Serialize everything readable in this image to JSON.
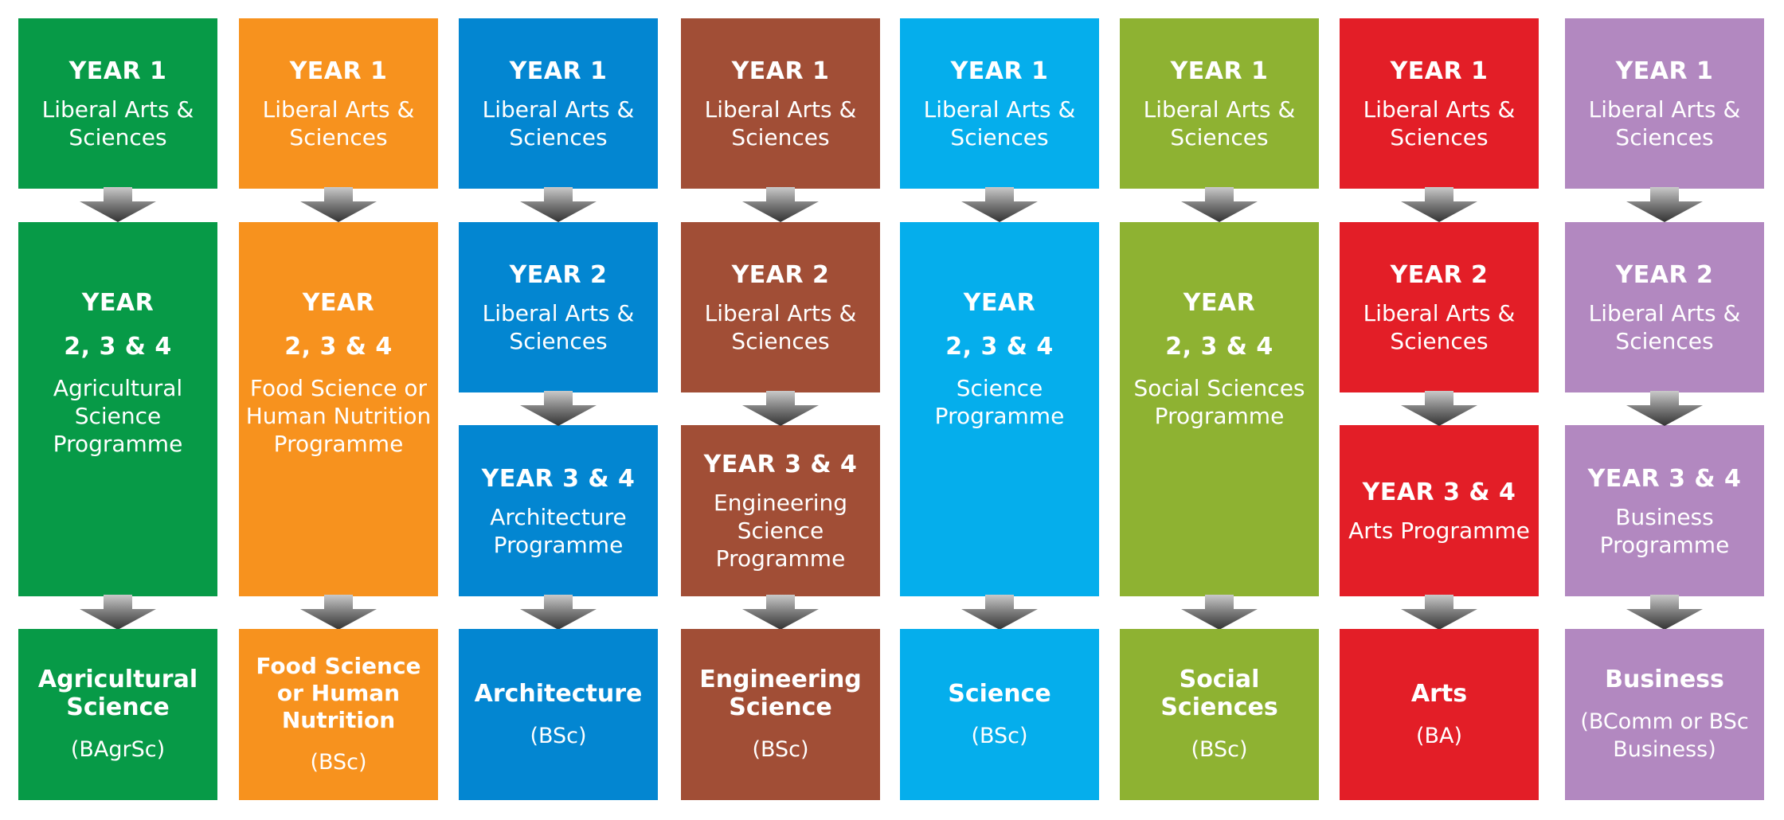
{
  "programmes": [
    {
      "color": "#079a47",
      "stages": [
        {
          "heading": "YEAR 1",
          "text": "Liberal Arts & Sciences"
        },
        {
          "heading": "YEAR",
          "subheading": "2, 3 & 4",
          "text": "Agricultural Science Programme"
        }
      ],
      "degree": {
        "title": "Agricultural Science",
        "abbr": "(BAgrSc)"
      }
    },
    {
      "color": "#f7921e",
      "stages": [
        {
          "heading": "YEAR 1",
          "text": "Liberal Arts & Sciences"
        },
        {
          "heading": "YEAR",
          "subheading": "2, 3 & 4",
          "text": "Food Science or Human Nutrition Programme"
        }
      ],
      "degree": {
        "title": "Food Science or Human Nutrition",
        "abbr": "(BSc)"
      }
    },
    {
      "color": "#0386d1",
      "stages": [
        {
          "heading": "YEAR 1",
          "text": "Liberal Arts & Sciences"
        },
        {
          "heading": "YEAR 2",
          "text": "Liberal Arts & Sciences"
        },
        {
          "heading": "YEAR 3 & 4",
          "text": "Architecture Programme"
        }
      ],
      "degree": {
        "title": "Architecture",
        "abbr": "(BSc)"
      }
    },
    {
      "color": "#a14e36",
      "stages": [
        {
          "heading": "YEAR 1",
          "text": "Liberal Arts & Sciences"
        },
        {
          "heading": "YEAR 2",
          "text": "Liberal Arts & Sciences"
        },
        {
          "heading": "YEAR 3 & 4",
          "text": "Engineering Science Programme"
        }
      ],
      "degree": {
        "title": "Engineering Science",
        "abbr": "(BSc)"
      }
    },
    {
      "color": "#05aeec",
      "stages": [
        {
          "heading": "YEAR 1",
          "text": "Liberal Arts & Sciences"
        },
        {
          "heading": "YEAR",
          "subheading": "2, 3 & 4",
          "text": "Science Programme"
        }
      ],
      "degree": {
        "title": "Science",
        "abbr": "(BSc)"
      }
    },
    {
      "color": "#8eb232",
      "stages": [
        {
          "heading": "YEAR 1",
          "text": "Liberal Arts & Sciences"
        },
        {
          "heading": "YEAR",
          "subheading": "2, 3 & 4",
          "text": "Social Sciences Programme"
        }
      ],
      "degree": {
        "title": "Social Sciences",
        "abbr": "(BSc)"
      }
    },
    {
      "color": "#e31e27",
      "stages": [
        {
          "heading": "YEAR 1",
          "text": "Liberal Arts & Sciences"
        },
        {
          "heading": "YEAR 2",
          "text": "Liberal Arts & Sciences"
        },
        {
          "heading": "YEAR 3 & 4",
          "text": "Arts Programme"
        }
      ],
      "degree": {
        "title": "Arts",
        "abbr": "(BA)"
      }
    },
    {
      "color": "#b288c0",
      "stages": [
        {
          "heading": "YEAR 1",
          "text": "Liberal Arts & Sciences"
        },
        {
          "heading": "YEAR 2",
          "text": "Liberal Arts & Sciences"
        },
        {
          "heading": "YEAR 3 & 4",
          "text": "Business Programme"
        }
      ],
      "degree": {
        "title": "Business",
        "abbr": "(BComm or BSc Business)"
      }
    }
  ]
}
